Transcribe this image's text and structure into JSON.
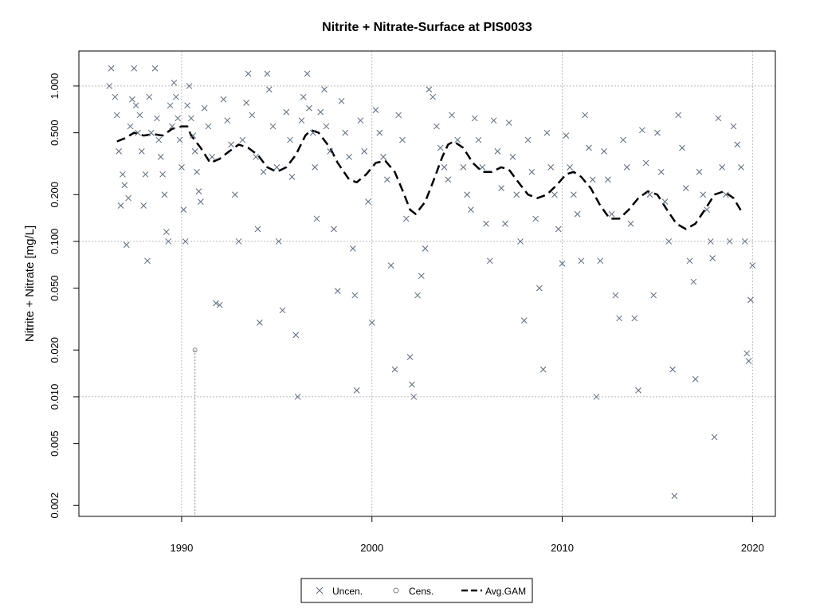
{
  "chart_data": {
    "type": "scatter",
    "title": "Nitrite + Nitrate-Surface at PIS0033",
    "xlabel": "",
    "ylabel": "Nitrite + Nitrate [mg/L]",
    "y_scale": "log",
    "xlim": [
      1984.6,
      2021.2
    ],
    "ylim": [
      0.0017,
      1.68
    ],
    "x_ticks": [
      1990,
      2000,
      2010,
      2020
    ],
    "x_tick_labels": [
      "1990",
      "2000",
      "2010",
      "2020"
    ],
    "y_ticks": [
      0.002,
      0.005,
      0.01,
      0.02,
      0.05,
      0.1,
      0.2,
      0.5,
      1.0
    ],
    "y_tick_labels": [
      "0.002",
      "0.005",
      "0.010",
      "0.020",
      "0.050",
      "0.100",
      "0.200",
      "0.500",
      "1.000"
    ],
    "grid": true,
    "grid_x": [
      1990,
      2000,
      2010,
      2020
    ],
    "grid_y": [
      0.01,
      0.1,
      1.0
    ],
    "legend_position": "bottom-center",
    "colors": {
      "uncensored": "#5a6a80",
      "censored": "#808080",
      "gam": "#000000",
      "grid": "#bbbbbb"
    },
    "series": [
      {
        "name": "Uncen.",
        "marker": "x",
        "points": [
          [
            1986.2,
            1.0
          ],
          [
            1986.3,
            1.3
          ],
          [
            1986.5,
            0.85
          ],
          [
            1986.6,
            0.65
          ],
          [
            1986.7,
            0.38
          ],
          [
            1986.8,
            0.17
          ],
          [
            1986.9,
            0.27
          ],
          [
            1987.0,
            0.23
          ],
          [
            1987.1,
            0.095
          ],
          [
            1987.2,
            0.19
          ],
          [
            1987.3,
            0.55
          ],
          [
            1987.4,
            0.82
          ],
          [
            1987.5,
            1.3
          ],
          [
            1987.6,
            0.75
          ],
          [
            1987.7,
            0.5
          ],
          [
            1987.8,
            0.65
          ],
          [
            1987.9,
            0.38
          ],
          [
            1988.0,
            0.17
          ],
          [
            1988.1,
            0.27
          ],
          [
            1988.2,
            0.075
          ],
          [
            1988.3,
            0.85
          ],
          [
            1988.4,
            0.5
          ],
          [
            1988.6,
            1.3
          ],
          [
            1988.7,
            0.62
          ],
          [
            1988.8,
            0.45
          ],
          [
            1988.9,
            0.35
          ],
          [
            1989.0,
            0.27
          ],
          [
            1989.1,
            0.2
          ],
          [
            1989.2,
            0.115
          ],
          [
            1989.3,
            0.1
          ],
          [
            1989.4,
            0.75
          ],
          [
            1989.5,
            0.55
          ],
          [
            1989.6,
            1.05
          ],
          [
            1989.7,
            0.85
          ],
          [
            1989.8,
            0.62
          ],
          [
            1989.9,
            0.45
          ],
          [
            1990.0,
            0.3
          ],
          [
            1990.1,
            0.16
          ],
          [
            1990.2,
            0.1
          ],
          [
            1990.3,
            0.75
          ],
          [
            1990.4,
            1.0
          ],
          [
            1990.5,
            0.62
          ],
          [
            1990.6,
            0.48
          ],
          [
            1990.7,
            0.38
          ],
          [
            1990.8,
            0.28
          ],
          [
            1990.9,
            0.21
          ],
          [
            1991.0,
            0.18
          ],
          [
            1991.2,
            0.72
          ],
          [
            1991.4,
            0.55
          ],
          [
            1991.6,
            0.35
          ],
          [
            1991.8,
            0.04
          ],
          [
            1992.0,
            0.039
          ],
          [
            1992.2,
            0.82
          ],
          [
            1992.4,
            0.6
          ],
          [
            1992.6,
            0.42
          ],
          [
            1992.8,
            0.2
          ],
          [
            1993.0,
            0.1
          ],
          [
            1993.2,
            0.45
          ],
          [
            1993.4,
            0.78
          ],
          [
            1993.5,
            1.2
          ],
          [
            1993.7,
            0.65
          ],
          [
            1993.9,
            0.35
          ],
          [
            1994.0,
            0.12
          ],
          [
            1994.1,
            0.03
          ],
          [
            1994.3,
            0.28
          ],
          [
            1994.5,
            1.2
          ],
          [
            1994.6,
            0.95
          ],
          [
            1994.8,
            0.55
          ],
          [
            1995.0,
            0.3
          ],
          [
            1995.1,
            0.1
          ],
          [
            1995.3,
            0.036
          ],
          [
            1995.5,
            0.68
          ],
          [
            1995.7,
            0.45
          ],
          [
            1995.8,
            0.26
          ],
          [
            1996.0,
            0.025
          ],
          [
            1996.1,
            0.01
          ],
          [
            1996.3,
            0.6
          ],
          [
            1996.4,
            0.85
          ],
          [
            1996.6,
            1.2
          ],
          [
            1996.7,
            0.72
          ],
          [
            1996.9,
            0.5
          ],
          [
            1997.0,
            0.3
          ],
          [
            1997.1,
            0.14
          ],
          [
            1997.3,
            0.68
          ],
          [
            1997.5,
            0.95
          ],
          [
            1997.6,
            0.55
          ],
          [
            1997.8,
            0.38
          ],
          [
            1998.0,
            0.12
          ],
          [
            1998.2,
            0.048
          ],
          [
            1998.4,
            0.8
          ],
          [
            1998.6,
            0.5
          ],
          [
            1998.8,
            0.35
          ],
          [
            1999.0,
            0.09
          ],
          [
            1999.1,
            0.045
          ],
          [
            1999.2,
            0.011
          ],
          [
            1999.4,
            0.6
          ],
          [
            1999.6,
            0.38
          ],
          [
            1999.8,
            0.18
          ],
          [
            2000.0,
            0.03
          ],
          [
            2000.2,
            0.7
          ],
          [
            2000.4,
            0.5
          ],
          [
            2000.6,
            0.35
          ],
          [
            2000.8,
            0.25
          ],
          [
            2001.0,
            0.07
          ],
          [
            2001.2,
            0.015
          ],
          [
            2001.4,
            0.65
          ],
          [
            2001.6,
            0.45
          ],
          [
            2001.8,
            0.14
          ],
          [
            2002.0,
            0.018
          ],
          [
            2002.1,
            0.012
          ],
          [
            2002.2,
            0.01
          ],
          [
            2002.4,
            0.045
          ],
          [
            2002.6,
            0.06
          ],
          [
            2002.8,
            0.09
          ],
          [
            2003.0,
            0.95
          ],
          [
            2003.2,
            0.85
          ],
          [
            2003.4,
            0.55
          ],
          [
            2003.6,
            0.4
          ],
          [
            2003.8,
            0.3
          ],
          [
            2004.0,
            0.25
          ],
          [
            2004.2,
            0.65
          ],
          [
            2004.5,
            0.45
          ],
          [
            2004.8,
            0.3
          ],
          [
            2005.0,
            0.2
          ],
          [
            2005.2,
            0.16
          ],
          [
            2005.4,
            0.62
          ],
          [
            2005.6,
            0.45
          ],
          [
            2005.8,
            0.3
          ],
          [
            2006.0,
            0.13
          ],
          [
            2006.2,
            0.075
          ],
          [
            2006.4,
            0.6
          ],
          [
            2006.6,
            0.38
          ],
          [
            2006.8,
            0.22
          ],
          [
            2007.0,
            0.13
          ],
          [
            2007.2,
            0.58
          ],
          [
            2007.4,
            0.35
          ],
          [
            2007.6,
            0.2
          ],
          [
            2007.8,
            0.1
          ],
          [
            2008.0,
            0.031
          ],
          [
            2008.2,
            0.45
          ],
          [
            2008.4,
            0.28
          ],
          [
            2008.6,
            0.14
          ],
          [
            2008.8,
            0.05
          ],
          [
            2009.0,
            0.015
          ],
          [
            2009.2,
            0.5
          ],
          [
            2009.4,
            0.3
          ],
          [
            2009.6,
            0.2
          ],
          [
            2009.8,
            0.12
          ],
          [
            2010.0,
            0.072
          ],
          [
            2010.2,
            0.48
          ],
          [
            2010.4,
            0.3
          ],
          [
            2010.6,
            0.2
          ],
          [
            2010.8,
            0.15
          ],
          [
            2011.0,
            0.075
          ],
          [
            2011.2,
            0.65
          ],
          [
            2011.4,
            0.4
          ],
          [
            2011.6,
            0.25
          ],
          [
            2011.8,
            0.01
          ],
          [
            2012.0,
            0.075
          ],
          [
            2012.2,
            0.38
          ],
          [
            2012.4,
            0.25
          ],
          [
            2012.6,
            0.15
          ],
          [
            2012.8,
            0.045
          ],
          [
            2013.0,
            0.032
          ],
          [
            2013.2,
            0.45
          ],
          [
            2013.4,
            0.3
          ],
          [
            2013.6,
            0.13
          ],
          [
            2013.8,
            0.032
          ],
          [
            2014.0,
            0.011
          ],
          [
            2014.2,
            0.52
          ],
          [
            2014.4,
            0.32
          ],
          [
            2014.6,
            0.2
          ],
          [
            2014.8,
            0.045
          ],
          [
            2015.0,
            0.5
          ],
          [
            2015.2,
            0.28
          ],
          [
            2015.4,
            0.18
          ],
          [
            2015.6,
            0.1
          ],
          [
            2015.8,
            0.015
          ],
          [
            2015.9,
            0.0023
          ],
          [
            2016.1,
            0.65
          ],
          [
            2016.3,
            0.4
          ],
          [
            2016.5,
            0.22
          ],
          [
            2016.7,
            0.075
          ],
          [
            2016.9,
            0.055
          ],
          [
            2017.0,
            0.013
          ],
          [
            2017.2,
            0.28
          ],
          [
            2017.4,
            0.2
          ],
          [
            2017.6,
            0.16
          ],
          [
            2017.8,
            0.1
          ],
          [
            2017.9,
            0.078
          ],
          [
            2018.0,
            0.0055
          ],
          [
            2018.2,
            0.62
          ],
          [
            2018.4,
            0.3
          ],
          [
            2018.6,
            0.2
          ],
          [
            2018.8,
            0.1
          ],
          [
            2019.0,
            0.55
          ],
          [
            2019.2,
            0.42
          ],
          [
            2019.4,
            0.3
          ],
          [
            2019.6,
            0.1
          ],
          [
            2019.7,
            0.019
          ],
          [
            2019.8,
            0.017
          ],
          [
            2019.9,
            0.042
          ],
          [
            2020.0,
            0.07
          ]
        ]
      },
      {
        "name": "Cens.",
        "marker": "o",
        "points": [
          [
            1990.7,
            0.02
          ]
        ]
      },
      {
        "name": "Avg.GAM",
        "line": "dashed",
        "points": [
          [
            1986.6,
            0.44
          ],
          [
            1987.0,
            0.46
          ],
          [
            1987.5,
            0.5
          ],
          [
            1988.0,
            0.48
          ],
          [
            1988.5,
            0.49
          ],
          [
            1989.0,
            0.48
          ],
          [
            1989.5,
            0.53
          ],
          [
            1990.0,
            0.55
          ],
          [
            1990.3,
            0.55
          ],
          [
            1990.5,
            0.48
          ],
          [
            1991.0,
            0.4
          ],
          [
            1991.5,
            0.32
          ],
          [
            1992.0,
            0.34
          ],
          [
            1992.5,
            0.38
          ],
          [
            1993.0,
            0.42
          ],
          [
            1993.5,
            0.4
          ],
          [
            1994.0,
            0.36
          ],
          [
            1994.5,
            0.3
          ],
          [
            1995.0,
            0.28
          ],
          [
            1995.5,
            0.3
          ],
          [
            1996.0,
            0.36
          ],
          [
            1996.5,
            0.48
          ],
          [
            1996.8,
            0.52
          ],
          [
            1997.2,
            0.5
          ],
          [
            1997.8,
            0.4
          ],
          [
            1998.2,
            0.32
          ],
          [
            1998.8,
            0.25
          ],
          [
            1999.2,
            0.24
          ],
          [
            1999.7,
            0.27
          ],
          [
            2000.2,
            0.32
          ],
          [
            2000.7,
            0.33
          ],
          [
            2001.2,
            0.28
          ],
          [
            2001.7,
            0.2
          ],
          [
            2002.0,
            0.16
          ],
          [
            2002.3,
            0.15
          ],
          [
            2002.8,
            0.18
          ],
          [
            2003.2,
            0.24
          ],
          [
            2003.7,
            0.35
          ],
          [
            2004.0,
            0.42
          ],
          [
            2004.3,
            0.44
          ],
          [
            2004.8,
            0.4
          ],
          [
            2005.3,
            0.32
          ],
          [
            2005.8,
            0.28
          ],
          [
            2006.3,
            0.28
          ],
          [
            2006.8,
            0.3
          ],
          [
            2007.2,
            0.29
          ],
          [
            2007.7,
            0.24
          ],
          [
            2008.2,
            0.2
          ],
          [
            2008.7,
            0.19
          ],
          [
            2009.2,
            0.2
          ],
          [
            2009.7,
            0.23
          ],
          [
            2010.2,
            0.27
          ],
          [
            2010.6,
            0.28
          ],
          [
            2011.0,
            0.26
          ],
          [
            2011.5,
            0.22
          ],
          [
            2012.0,
            0.17
          ],
          [
            2012.5,
            0.14
          ],
          [
            2013.0,
            0.14
          ],
          [
            2013.5,
            0.16
          ],
          [
            2014.0,
            0.19
          ],
          [
            2014.5,
            0.21
          ],
          [
            2015.0,
            0.2
          ],
          [
            2015.5,
            0.16
          ],
          [
            2016.0,
            0.13
          ],
          [
            2016.5,
            0.12
          ],
          [
            2017.0,
            0.13
          ],
          [
            2017.5,
            0.16
          ],
          [
            2018.0,
            0.2
          ],
          [
            2018.5,
            0.21
          ],
          [
            2019.0,
            0.19
          ],
          [
            2019.5,
            0.15
          ]
        ]
      }
    ],
    "censored_segments": [
      {
        "x": 1990.7,
        "y_from": 0.0017,
        "y_to": 0.02
      }
    ]
  }
}
